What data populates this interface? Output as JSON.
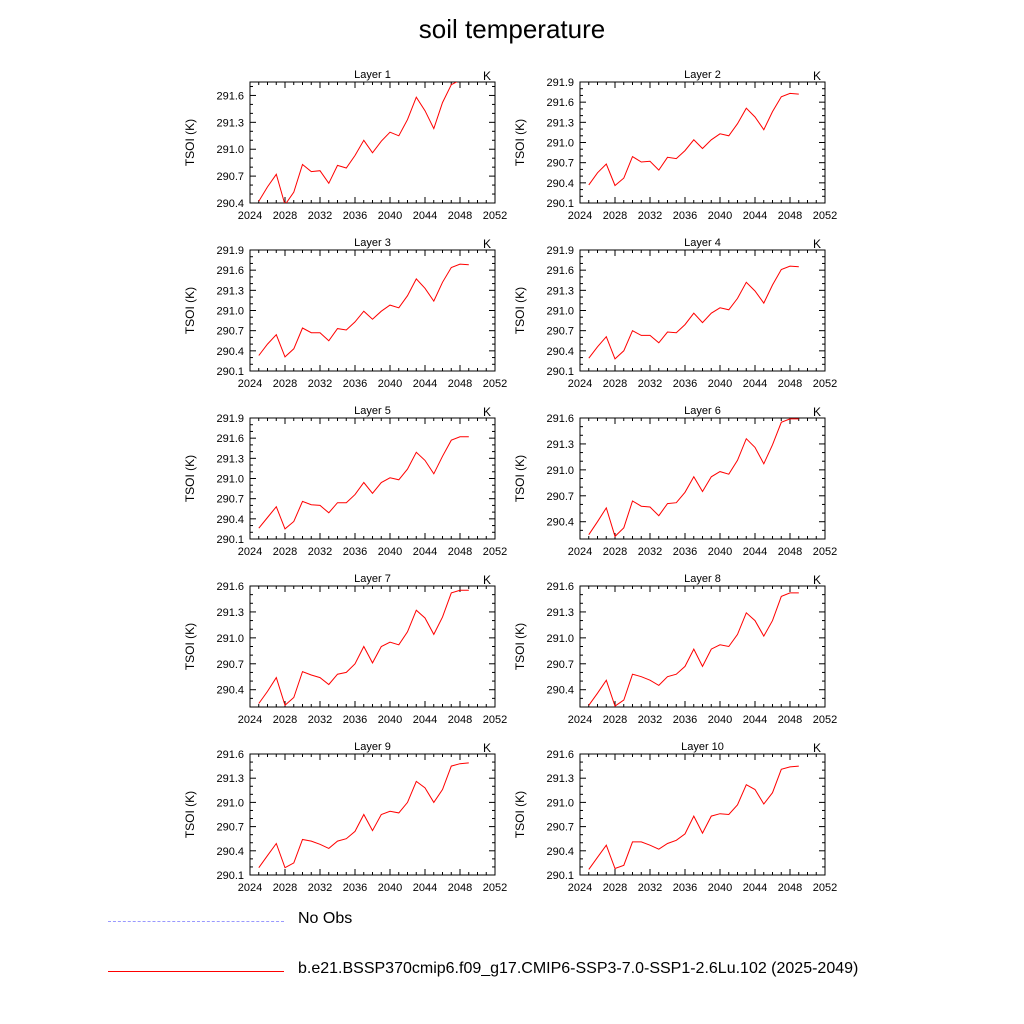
{
  "figure": {
    "title": "soil temperature"
  },
  "legend": [
    {
      "label": "No Obs",
      "color": "#9999ff",
      "style": "dashed"
    },
    {
      "label": "b.e21.BSSP370cmip6.f09_g17.CMIP6-SSP3-7.0-SSP1-2.6Lu.102 (2025-2049)",
      "color": "#ff0000",
      "style": "solid"
    }
  ],
  "chart_data": [
    {
      "type": "line",
      "title": "Layer 1",
      "units_label": "K",
      "ylabel": "TSOI  (K)",
      "xlim": [
        2024,
        2052
      ],
      "xticks": [
        "2024",
        "2028",
        "2032",
        "2036",
        "2040",
        "2044",
        "2048",
        "2052"
      ],
      "ylim": [
        290.4,
        291.75
      ],
      "yticks": [
        "290.4",
        "290.7",
        "291.0",
        "291.3",
        "291.6"
      ],
      "series": [
        {
          "color": "#ff0000",
          "x": [
            2025,
            2026,
            2027,
            2028,
            2029,
            2030,
            2031,
            2032,
            2033,
            2034,
            2035,
            2036,
            2037,
            2038,
            2039,
            2040,
            2041,
            2042,
            2043,
            2044,
            2045,
            2046,
            2047,
            2048,
            2049
          ],
          "values": [
            290.42,
            290.58,
            290.72,
            290.38,
            290.52,
            290.83,
            290.75,
            290.76,
            290.62,
            290.82,
            290.79,
            290.93,
            291.1,
            290.96,
            291.09,
            291.19,
            291.15,
            291.33,
            291.58,
            291.43,
            291.23,
            291.52,
            291.72,
            291.77,
            291.77
          ]
        }
      ]
    },
    {
      "type": "line",
      "title": "Layer 2",
      "units_label": "K",
      "ylabel": "TSOI  (K)",
      "xlim": [
        2024,
        2052
      ],
      "xticks": [
        "2024",
        "2028",
        "2032",
        "2036",
        "2040",
        "2044",
        "2048",
        "2052"
      ],
      "ylim": [
        290.1,
        291.9
      ],
      "yticks": [
        "290.1",
        "290.4",
        "290.7",
        "291.0",
        "291.3",
        "291.6",
        "291.9"
      ],
      "series": [
        {
          "color": "#ff0000",
          "x": [
            2025,
            2026,
            2027,
            2028,
            2029,
            2030,
            2031,
            2032,
            2033,
            2034,
            2035,
            2036,
            2037,
            2038,
            2039,
            2040,
            2041,
            2042,
            2043,
            2044,
            2045,
            2046,
            2047,
            2048,
            2049
          ],
          "values": [
            290.37,
            290.55,
            290.68,
            290.36,
            290.47,
            290.79,
            290.71,
            290.72,
            290.59,
            290.78,
            290.76,
            290.88,
            291.04,
            290.91,
            291.04,
            291.13,
            291.1,
            291.28,
            291.51,
            291.38,
            291.19,
            291.46,
            291.68,
            291.73,
            291.72
          ]
        }
      ]
    },
    {
      "type": "line",
      "title": "Layer 3",
      "units_label": "K",
      "ylabel": "TSOI  (K)",
      "xlim": [
        2024,
        2052
      ],
      "xticks": [
        "2024",
        "2028",
        "2032",
        "2036",
        "2040",
        "2044",
        "2048",
        "2052"
      ],
      "ylim": [
        290.1,
        291.9
      ],
      "yticks": [
        "290.1",
        "290.4",
        "290.7",
        "291.0",
        "291.3",
        "291.6",
        "291.9"
      ],
      "series": [
        {
          "color": "#ff0000",
          "x": [
            2025,
            2026,
            2027,
            2028,
            2029,
            2030,
            2031,
            2032,
            2033,
            2034,
            2035,
            2036,
            2037,
            2038,
            2039,
            2040,
            2041,
            2042,
            2043,
            2044,
            2045,
            2046,
            2047,
            2048,
            2049
          ],
          "values": [
            290.33,
            290.5,
            290.64,
            290.31,
            290.43,
            290.74,
            290.67,
            290.67,
            290.55,
            290.73,
            290.71,
            290.83,
            290.99,
            290.87,
            290.99,
            291.08,
            291.04,
            291.22,
            291.47,
            291.33,
            291.14,
            291.42,
            291.64,
            291.69,
            291.68
          ]
        }
      ]
    },
    {
      "type": "line",
      "title": "Layer 4",
      "units_label": "K",
      "ylabel": "TSOI  (K)",
      "xlim": [
        2024,
        2052
      ],
      "xticks": [
        "2024",
        "2028",
        "2032",
        "2036",
        "2040",
        "2044",
        "2048",
        "2052"
      ],
      "ylim": [
        290.1,
        291.9
      ],
      "yticks": [
        "290.1",
        "290.4",
        "290.7",
        "291.0",
        "291.3",
        "291.6",
        "291.9"
      ],
      "series": [
        {
          "color": "#ff0000",
          "x": [
            2025,
            2026,
            2027,
            2028,
            2029,
            2030,
            2031,
            2032,
            2033,
            2034,
            2035,
            2036,
            2037,
            2038,
            2039,
            2040,
            2041,
            2042,
            2043,
            2044,
            2045,
            2046,
            2047,
            2048,
            2049
          ],
          "values": [
            290.29,
            290.46,
            290.61,
            290.28,
            290.4,
            290.7,
            290.63,
            290.63,
            290.52,
            290.68,
            290.67,
            290.79,
            290.96,
            290.82,
            290.96,
            291.04,
            291.01,
            291.18,
            291.42,
            291.29,
            291.11,
            291.38,
            291.61,
            291.66,
            291.65
          ]
        }
      ]
    },
    {
      "type": "line",
      "title": "Layer 5",
      "units_label": "K",
      "ylabel": "TSOI  (K)",
      "xlim": [
        2024,
        2052
      ],
      "xticks": [
        "2024",
        "2028",
        "2032",
        "2036",
        "2040",
        "2044",
        "2048",
        "2052"
      ],
      "ylim": [
        290.1,
        291.9
      ],
      "yticks": [
        "290.1",
        "290.4",
        "290.7",
        "291.0",
        "291.3",
        "291.6",
        "291.9"
      ],
      "series": [
        {
          "color": "#ff0000",
          "x": [
            2025,
            2026,
            2027,
            2028,
            2029,
            2030,
            2031,
            2032,
            2033,
            2034,
            2035,
            2036,
            2037,
            2038,
            2039,
            2040,
            2041,
            2042,
            2043,
            2044,
            2045,
            2046,
            2047,
            2048,
            2049
          ],
          "values": [
            290.26,
            290.42,
            290.58,
            290.25,
            290.36,
            290.66,
            290.61,
            290.6,
            290.49,
            290.64,
            290.64,
            290.76,
            290.94,
            290.78,
            290.94,
            291.01,
            290.98,
            291.14,
            291.39,
            291.27,
            291.07,
            291.33,
            291.57,
            291.62,
            291.62
          ]
        }
      ]
    },
    {
      "type": "line",
      "title": "Layer 6",
      "units_label": "K",
      "ylabel": "TSOI  (K)",
      "xlim": [
        2024,
        2052
      ],
      "xticks": [
        "2024",
        "2028",
        "2032",
        "2036",
        "2040",
        "2044",
        "2048",
        "2052"
      ],
      "ylim": [
        290.2,
        291.6
      ],
      "yticks": [
        "290.4",
        "290.7",
        "291.0",
        "291.3",
        "291.6"
      ],
      "series": [
        {
          "color": "#ff0000",
          "x": [
            2025,
            2026,
            2027,
            2028,
            2029,
            2030,
            2031,
            2032,
            2033,
            2034,
            2035,
            2036,
            2037,
            2038,
            2039,
            2040,
            2041,
            2042,
            2043,
            2044,
            2045,
            2046,
            2047,
            2048,
            2049
          ],
          "values": [
            290.25,
            290.4,
            290.56,
            290.23,
            290.33,
            290.64,
            290.58,
            290.57,
            290.47,
            290.61,
            290.62,
            290.74,
            290.92,
            290.75,
            290.92,
            290.98,
            290.95,
            291.11,
            291.36,
            291.26,
            291.07,
            291.29,
            291.55,
            291.59,
            291.59
          ]
        }
      ]
    },
    {
      "type": "line",
      "title": "Layer 7",
      "units_label": "K",
      "ylabel": "TSOI  (K)",
      "xlim": [
        2024,
        2052
      ],
      "xticks": [
        "2024",
        "2028",
        "2032",
        "2036",
        "2040",
        "2044",
        "2048",
        "2052"
      ],
      "ylim": [
        290.2,
        291.6
      ],
      "yticks": [
        "290.4",
        "290.7",
        "291.0",
        "291.3",
        "291.6"
      ],
      "series": [
        {
          "color": "#ff0000",
          "x": [
            2025,
            2026,
            2027,
            2028,
            2029,
            2030,
            2031,
            2032,
            2033,
            2034,
            2035,
            2036,
            2037,
            2038,
            2039,
            2040,
            2041,
            2042,
            2043,
            2044,
            2045,
            2046,
            2047,
            2048,
            2049
          ],
          "values": [
            290.24,
            290.38,
            290.54,
            290.22,
            290.31,
            290.61,
            290.57,
            290.54,
            290.46,
            290.58,
            290.6,
            290.7,
            290.9,
            290.71,
            290.9,
            290.95,
            290.92,
            291.07,
            291.32,
            291.23,
            291.04,
            291.24,
            291.52,
            291.55,
            291.55
          ]
        }
      ]
    },
    {
      "type": "line",
      "title": "Layer 8",
      "units_label": "K",
      "ylabel": "TSOI  (K)",
      "xlim": [
        2024,
        2052
      ],
      "xticks": [
        "2024",
        "2028",
        "2032",
        "2036",
        "2040",
        "2044",
        "2048",
        "2052"
      ],
      "ylim": [
        290.2,
        291.6
      ],
      "yticks": [
        "290.4",
        "290.7",
        "291.0",
        "291.3",
        "291.6"
      ],
      "series": [
        {
          "color": "#ff0000",
          "x": [
            2025,
            2026,
            2027,
            2028,
            2029,
            2030,
            2031,
            2032,
            2033,
            2034,
            2035,
            2036,
            2037,
            2038,
            2039,
            2040,
            2041,
            2042,
            2043,
            2044,
            2045,
            2046,
            2047,
            2048,
            2049
          ],
          "values": [
            290.22,
            290.36,
            290.51,
            290.21,
            290.28,
            290.58,
            290.55,
            290.51,
            290.45,
            290.55,
            290.58,
            290.67,
            290.87,
            290.67,
            290.87,
            290.92,
            290.9,
            291.04,
            291.29,
            291.2,
            291.02,
            291.2,
            291.48,
            291.52,
            291.52
          ]
        }
      ]
    },
    {
      "type": "line",
      "title": "Layer 9",
      "units_label": "K",
      "ylabel": "TSOI  (K)",
      "xlim": [
        2024,
        2052
      ],
      "xticks": [
        "2024",
        "2028",
        "2032",
        "2036",
        "2040",
        "2044",
        "2048",
        "2052"
      ],
      "ylim": [
        290.1,
        291.6
      ],
      "yticks": [
        "290.1",
        "290.4",
        "290.7",
        "291.0",
        "291.3",
        "291.6"
      ],
      "series": [
        {
          "color": "#ff0000",
          "x": [
            2025,
            2026,
            2027,
            2028,
            2029,
            2030,
            2031,
            2032,
            2033,
            2034,
            2035,
            2036,
            2037,
            2038,
            2039,
            2040,
            2041,
            2042,
            2043,
            2044,
            2045,
            2046,
            2047,
            2048,
            2049
          ],
          "values": [
            290.19,
            290.34,
            290.49,
            290.19,
            290.25,
            290.54,
            290.52,
            290.48,
            290.43,
            290.52,
            290.55,
            290.64,
            290.85,
            290.65,
            290.85,
            290.89,
            290.87,
            291.0,
            291.26,
            291.18,
            291.0,
            291.16,
            291.45,
            291.48,
            291.49
          ]
        }
      ]
    },
    {
      "type": "line",
      "title": "Layer 10",
      "units_label": "K",
      "ylabel": "TSOI  (K)",
      "xlim": [
        2024,
        2052
      ],
      "xticks": [
        "2024",
        "2028",
        "2032",
        "2036",
        "2040",
        "2044",
        "2048",
        "2052"
      ],
      "ylim": [
        290.1,
        291.6
      ],
      "yticks": [
        "290.1",
        "290.4",
        "290.7",
        "291.0",
        "291.3",
        "291.6"
      ],
      "series": [
        {
          "color": "#ff0000",
          "x": [
            2025,
            2026,
            2027,
            2028,
            2029,
            2030,
            2031,
            2032,
            2033,
            2034,
            2035,
            2036,
            2037,
            2038,
            2039,
            2040,
            2041,
            2042,
            2043,
            2044,
            2045,
            2046,
            2047,
            2048,
            2049
          ],
          "values": [
            290.17,
            290.32,
            290.47,
            290.18,
            290.22,
            290.51,
            290.51,
            290.47,
            290.42,
            290.49,
            290.53,
            290.61,
            290.83,
            290.62,
            290.83,
            290.86,
            290.85,
            290.97,
            291.22,
            291.16,
            290.98,
            291.12,
            291.41,
            291.44,
            291.45
          ]
        }
      ]
    }
  ]
}
